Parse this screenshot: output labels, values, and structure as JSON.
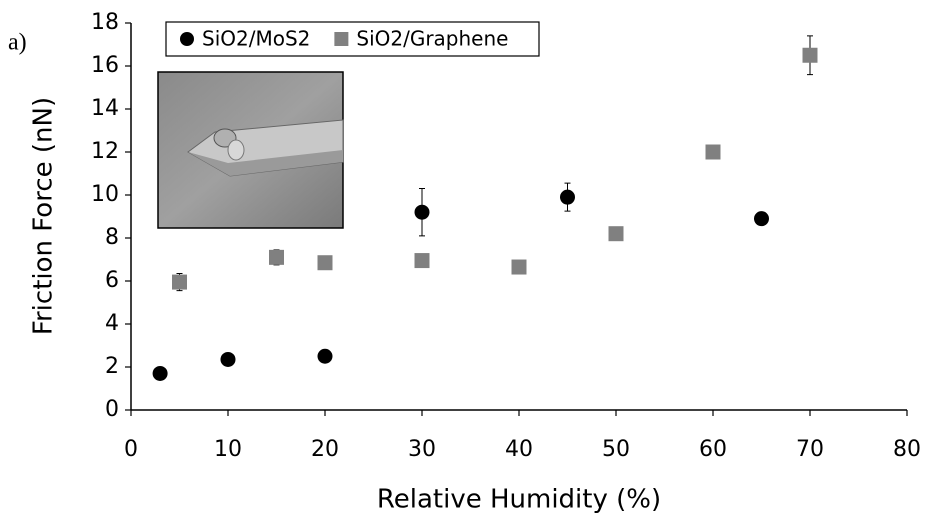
{
  "chart_data": {
    "type": "scatter",
    "panel_label": "a)",
    "xlabel": "Relative Humidity (%)",
    "ylabel": "Friction Force (nN)",
    "xlim": [
      0,
      80
    ],
    "ylim": [
      0,
      18
    ],
    "xticks": [
      0,
      10,
      20,
      30,
      40,
      50,
      60,
      70,
      80
    ],
    "yticks": [
      0,
      2,
      4,
      6,
      8,
      10,
      12,
      14,
      16,
      18
    ],
    "legend": "top-left",
    "series": [
      {
        "name": "SiO2/MoS2",
        "color": "#000000",
        "marker": "circle",
        "x": [
          3,
          10,
          20,
          30,
          45,
          65
        ],
        "values": [
          1.7,
          2.35,
          2.5,
          9.2,
          9.9,
          8.9
        ],
        "errors": [
          null,
          null,
          null,
          1.1,
          0.65,
          null
        ]
      },
      {
        "name": "SiO2/Graphene",
        "color": "#808080",
        "marker": "square",
        "x": [
          5,
          15,
          20,
          30,
          40,
          50,
          60,
          70
        ],
        "values": [
          5.95,
          7.1,
          6.85,
          6.95,
          6.65,
          8.2,
          12.0,
          16.5
        ],
        "errors": [
          0.4,
          0.35,
          null,
          null,
          null,
          null,
          null,
          0.9
        ]
      }
    ]
  }
}
